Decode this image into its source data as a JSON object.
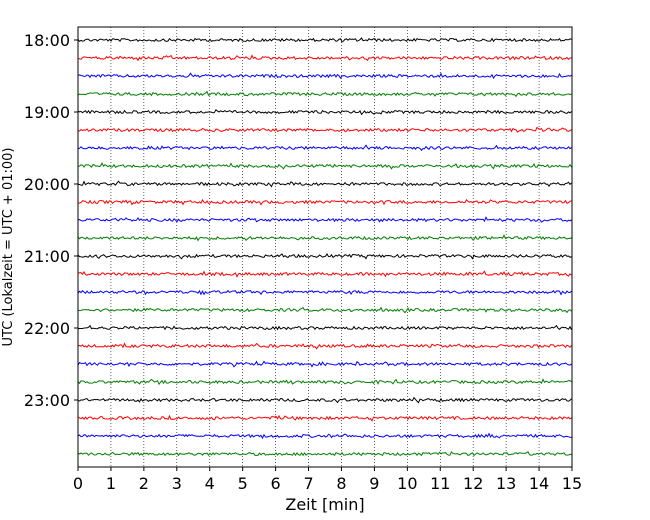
{
  "chart_data": {
    "type": "line",
    "title": "",
    "xlabel": "Zeit  [min]",
    "ylabel": "UTC (Lokalzeit = UTC + 01:00)",
    "xlim": [
      0,
      15
    ],
    "x_ticks": [
      0,
      1,
      2,
      3,
      4,
      5,
      6,
      7,
      8,
      9,
      10,
      11,
      12,
      13,
      14,
      15
    ],
    "x_tick_labels": [
      "0",
      "1",
      "2",
      "3",
      "4",
      "5",
      "6",
      "7",
      "8",
      "9",
      "10",
      "11",
      "12",
      "13",
      "14",
      "15"
    ],
    "y_tick_labels": [
      "18:00",
      "19:00",
      "20:00",
      "21:00",
      "22:00",
      "23:00"
    ],
    "y_start": "18:00",
    "y_end": "23:45",
    "trace_interval_min": 15,
    "trace_count": 24,
    "trace_colors": [
      "#000000",
      "#ff0000",
      "#0000ff",
      "#007f00"
    ],
    "grid": "vertical dotted lines at each minute",
    "legend": "none"
  }
}
